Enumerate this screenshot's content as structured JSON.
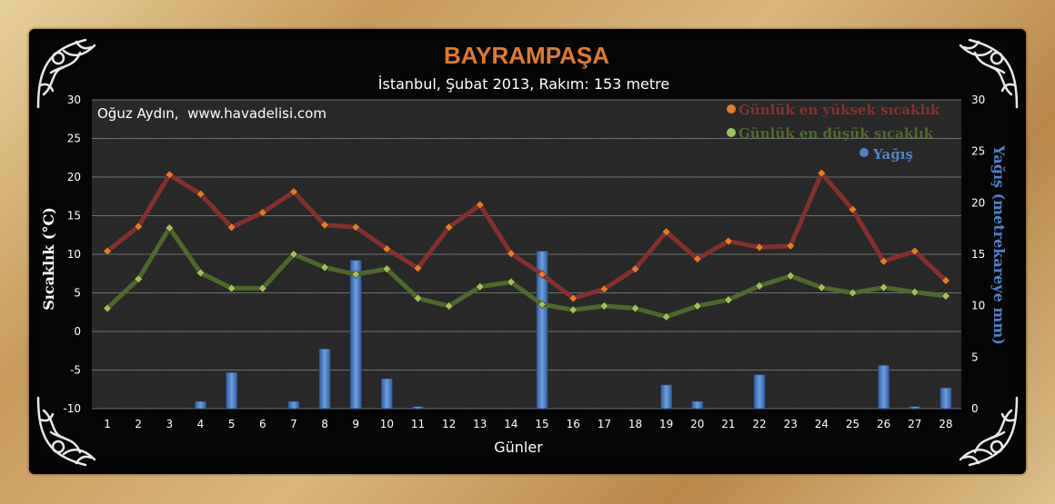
{
  "chart_data": {
    "type": "line+bar",
    "title": "BAYRAMPAŞA",
    "subtitle": "İstanbul, Şubat 2013, Rakım: 153 metre",
    "credit": "Oğuz Aydın,  www.havadelisi.com",
    "xlabel": "Günler",
    "ylabel_left": "Sıcaklık (°C)",
    "ylabel_right": "Yağış (metrekareye mm)",
    "ylim_left": [
      -10,
      30
    ],
    "ylim_right": [
      0,
      30
    ],
    "yticks_left": [
      -10,
      -5,
      0,
      5,
      10,
      15,
      20,
      25,
      30
    ],
    "yticks_right": [
      0,
      5,
      10,
      15,
      20,
      25,
      30
    ],
    "categories": [
      "1",
      "2",
      "3",
      "4",
      "5",
      "6",
      "7",
      "8",
      "9",
      "10",
      "11",
      "12",
      "13",
      "14",
      "15",
      "16",
      "17",
      "18",
      "19",
      "20",
      "21",
      "22",
      "23",
      "24",
      "25",
      "26",
      "27",
      "28"
    ],
    "series": [
      {
        "name": "Günlük en yüksek sıcaklık",
        "kind": "line",
        "axis": "left",
        "color": "#8b2f2f",
        "marker_color": "#e8792a",
        "values": [
          10.4,
          13.6,
          20.3,
          17.8,
          13.5,
          15.4,
          18.1,
          13.8,
          13.5,
          10.7,
          8.2,
          13.5,
          16.4,
          10.1,
          7.4,
          4.3,
          5.5,
          8.1,
          12.9,
          9.4,
          11.7,
          10.9,
          11.1,
          20.5,
          15.8,
          9.1,
          10.4,
          6.6
        ]
      },
      {
        "name": "Günlük en düşük sıcaklık",
        "kind": "line",
        "axis": "left",
        "color": "#4f6b2a",
        "marker_color": "#9cc15e",
        "values": [
          3.0,
          6.8,
          13.4,
          7.6,
          5.6,
          5.6,
          10.0,
          8.3,
          7.4,
          8.1,
          4.3,
          3.3,
          5.8,
          6.4,
          3.5,
          2.8,
          3.3,
          3.0,
          1.9,
          3.3,
          4.1,
          5.9,
          7.2,
          5.7,
          5.0,
          5.7,
          5.1,
          4.6
        ]
      },
      {
        "name": "Yağış",
        "kind": "bar",
        "axis": "right",
        "color": "#4f81c7",
        "values": [
          0,
          0,
          0,
          0.7,
          3.5,
          0,
          0.7,
          5.8,
          14.4,
          2.9,
          0.2,
          0,
          0,
          0,
          15.3,
          0,
          0,
          0,
          2.3,
          0.7,
          0,
          3.3,
          0,
          0,
          0,
          4.2,
          0.2,
          2.0
        ]
      }
    ],
    "legend_placement": "top-right",
    "grid": true
  }
}
